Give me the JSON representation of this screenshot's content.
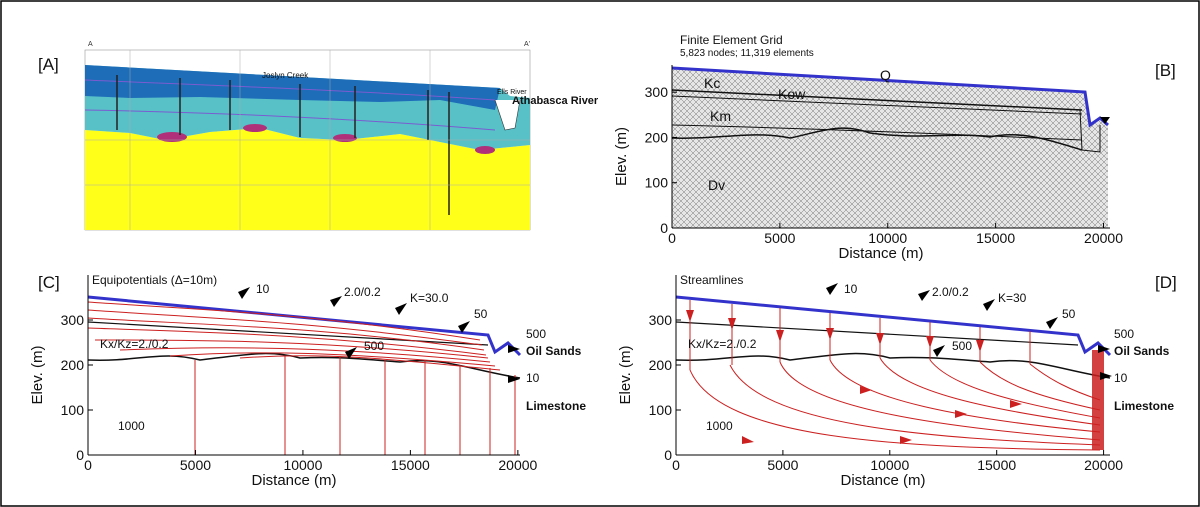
{
  "figure": {
    "panels": [
      {
        "label": "[A]",
        "section_start": "A",
        "section_end": "A'",
        "annotations": [
          "Joslyn Creek",
          "Ells River",
          "Athabasca River"
        ]
      },
      {
        "label": "[B]",
        "title": "Finite Element Grid",
        "subtitle": "5,823 nodes; 11,319 elements",
        "x_label": "Distance (m)",
        "y_label": "Elev. (m)",
        "xlim": [
          0,
          20300
        ],
        "ylim": [
          0,
          360
        ],
        "xticks": [
          0,
          5000,
          10000,
          15000,
          20000
        ],
        "yticks": [
          0,
          100,
          200,
          300
        ],
        "annotations": [
          "Q",
          "Kc",
          "Kow",
          "Km",
          "Dv"
        ]
      },
      {
        "label": "[C]",
        "title": "Equipotentials (Δ=10m)",
        "x_label": "Distance (m)",
        "y_label": "Elev. (m)",
        "xlim": [
          0,
          20100
        ],
        "ylim": [
          0,
          400
        ],
        "xticks": [
          0,
          5000,
          10000,
          15000,
          20000
        ],
        "yticks": [
          0,
          100,
          200,
          300
        ],
        "annotations": [
          "10",
          "2.0/0.2",
          "K=30.0",
          "50",
          "Kx/Kz=2./0.2",
          "500",
          "500",
          "Oil Sands",
          "10",
          "Limestone",
          "1000"
        ]
      },
      {
        "label": "[D]",
        "title": "Streamlines",
        "x_label": "Distance (m)",
        "y_label": "Elev. (m)",
        "xlim": [
          0,
          20300
        ],
        "ylim": [
          0,
          400
        ],
        "xticks": [
          0,
          5000,
          10000,
          15000,
          20000
        ],
        "yticks": [
          0,
          100,
          200,
          300
        ],
        "annotations": [
          "10",
          "2.0/0.2",
          "K=30",
          "50",
          "Kx/Kz=2./0.2",
          "500",
          "500",
          "Oil Sands",
          "10",
          "Limestone",
          "1000"
        ]
      }
    ]
  }
}
